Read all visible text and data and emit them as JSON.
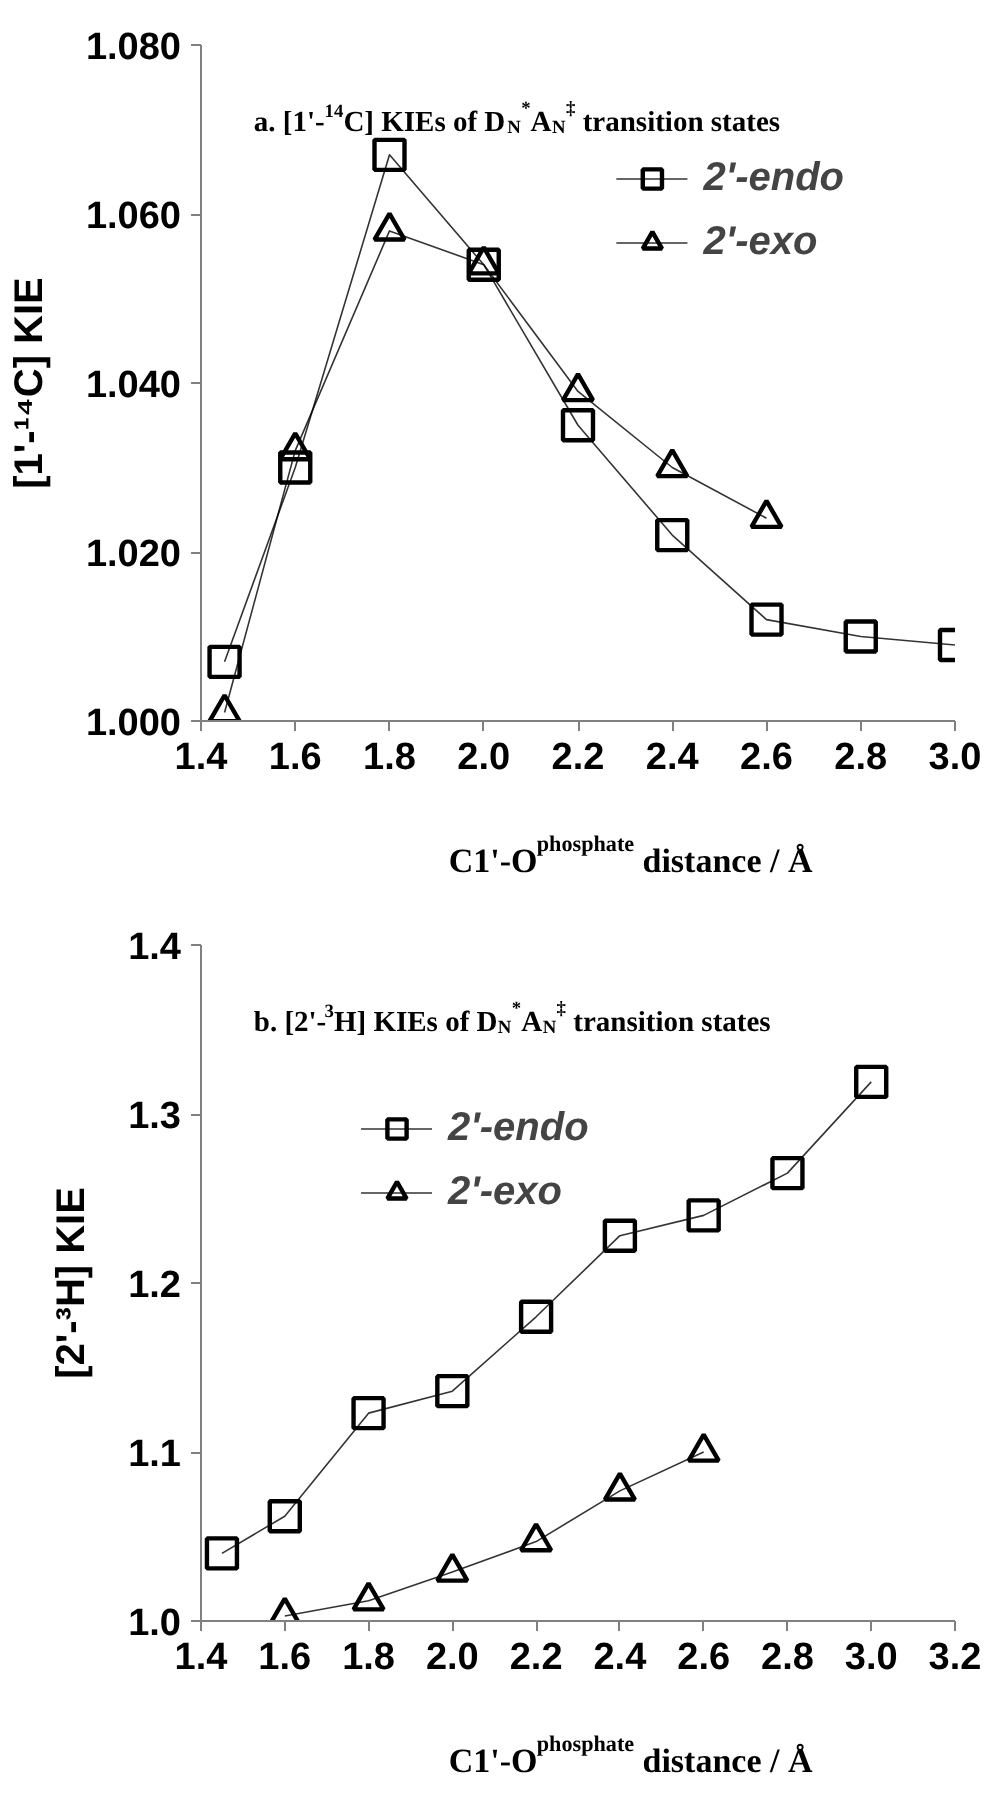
{
  "chart_data": [
    {
      "type": "line",
      "title": "a. [1'-$^{14}$C] KIEs of D$_{N}$$^{*}$A$_{N}$$^{‡}$ transition states",
      "xlabel": "C1'-O$^{phosphate}$ distance / Å",
      "ylabel": "[1'-¹⁴C] KIE",
      "x": [
        1.45,
        1.6,
        1.8,
        2.0,
        2.2,
        2.4,
        2.6,
        2.8,
        3.0
      ],
      "series": [
        {
          "name": "2'-endo",
          "color": "#000000",
          "marker": "square",
          "values": [
            1.007,
            1.03,
            1.067,
            1.054,
            1.035,
            1.022,
            1.012,
            1.01,
            1.009
          ]
        },
        {
          "name": "2'-exo",
          "color": "#000000",
          "marker": "triangle",
          "values": [
            1.001,
            1.032,
            1.058,
            1.054,
            1.039,
            1.03,
            1.024,
            null,
            null
          ]
        }
      ],
      "xlim": [
        1.4,
        3.0
      ],
      "ylim": [
        1.0,
        1.08
      ],
      "xticks": [
        {
          "value": 1.4,
          "label": "1.4"
        },
        {
          "value": 1.6,
          "label": "1.6"
        },
        {
          "value": 1.8,
          "label": "1.8"
        },
        {
          "value": 2.0,
          "label": "2.0"
        },
        {
          "value": 2.2,
          "label": "2.2"
        },
        {
          "value": 2.4,
          "label": "2.4"
        },
        {
          "value": 2.6,
          "label": "2.6"
        },
        {
          "value": 2.8,
          "label": "2.8"
        },
        {
          "value": 3.0,
          "label": "3.0"
        }
      ],
      "yticks": [
        {
          "value": 1.0,
          "label": "1.000"
        },
        {
          "value": 1.02,
          "label": "1.020"
        },
        {
          "value": 1.04,
          "label": "1.040"
        },
        {
          "value": 1.06,
          "label": "1.060"
        },
        {
          "value": 1.08,
          "label": "1.080"
        }
      ],
      "grid": false,
      "legend": "top right"
    },
    {
      "type": "line",
      "title": "b. [2'-$^{3}$H] KIEs of D$_{N}$$^{*}$A$_{N}$$^{‡}$ transition states",
      "xlabel": "C1'-O$^{phosphate}$ distance / Å",
      "ylabel": "[2'-³H] KIE",
      "x": [
        1.45,
        1.6,
        1.8,
        2.0,
        2.2,
        2.4,
        2.6,
        2.8,
        3.0
      ],
      "series": [
        {
          "name": "2'-endo",
          "color": "#000000",
          "marker": "square",
          "values": [
            1.04,
            1.062,
            1.123,
            1.136,
            1.18,
            1.228,
            1.24,
            1.265,
            1.319
          ]
        },
        {
          "name": "2'-exo",
          "color": "#000000",
          "marker": "triangle",
          "values": [
            null,
            1.003,
            1.012,
            1.029,
            1.047,
            1.077,
            1.1,
            null,
            null
          ]
        }
      ],
      "xlim": [
        1.4,
        3.2
      ],
      "ylim": [
        1.0,
        1.4
      ],
      "xticks": [
        {
          "value": 1.4,
          "label": "1.4"
        },
        {
          "value": 1.6,
          "label": "1.6"
        },
        {
          "value": 1.8,
          "label": "1.8"
        },
        {
          "value": 2.0,
          "label": "2.0"
        },
        {
          "value": 2.2,
          "label": "2.2"
        },
        {
          "value": 2.4,
          "label": "2.4"
        },
        {
          "value": 2.6,
          "label": "2.6"
        },
        {
          "value": 2.8,
          "label": "2.8"
        },
        {
          "value": 3.0,
          "label": "3.0"
        },
        {
          "value": 3.2,
          "label": "3.2"
        }
      ],
      "yticks": [
        {
          "value": 1.0,
          "label": "1.0"
        },
        {
          "value": 1.1,
          "label": "1.1"
        },
        {
          "value": 1.2,
          "label": "1.2"
        },
        {
          "value": 1.3,
          "label": "1.3"
        },
        {
          "value": 1.4,
          "label": "1.4"
        }
      ],
      "grid": false,
      "legend": "top left"
    }
  ]
}
